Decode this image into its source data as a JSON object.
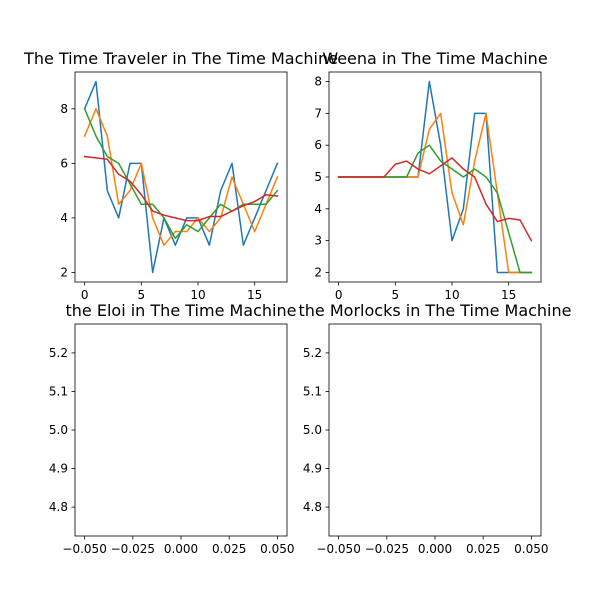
{
  "colors": {
    "series": [
      "#1f77b4",
      "#ff7f0e",
      "#2ca02c",
      "#d62728"
    ],
    "axes": "#000000",
    "background": "#ffffff"
  },
  "chart_data": [
    {
      "type": "line",
      "title": "The Time Traveler in The Time Machine",
      "xlabel": "",
      "ylabel": "",
      "x": [
        0,
        1,
        2,
        3,
        4,
        5,
        6,
        7,
        8,
        9,
        10,
        11,
        12,
        13,
        14,
        15,
        16,
        17
      ],
      "xlim": [
        -0.85,
        17.85
      ],
      "ylim": [
        1.65,
        9.35
      ],
      "xticks": [
        0,
        5,
        10,
        15
      ],
      "xtick_labels": [
        "0",
        "5",
        "10",
        "15"
      ],
      "yticks": [
        2,
        4,
        6,
        8
      ],
      "ytick_labels": [
        "2",
        "4",
        "6",
        "8"
      ],
      "grid": false,
      "series": [
        {
          "values": [
            8,
            9,
            5,
            4,
            6,
            6,
            2,
            4,
            3,
            4,
            4,
            3,
            5,
            6,
            3,
            4,
            5,
            6
          ]
        },
        {
          "values": [
            7,
            8,
            7,
            4.5,
            5,
            6,
            4,
            3,
            3.5,
            3.5,
            4,
            3.5,
            4,
            5.5,
            4.5,
            3.5,
            4.5,
            5.5
          ]
        },
        {
          "values": [
            8,
            7,
            6.25,
            6,
            5.25,
            4.5,
            4.5,
            4,
            3.25,
            3.75,
            3.5,
            4,
            4.5,
            4.25,
            4.5,
            4.5,
            4.5,
            5
          ]
        },
        {
          "values": [
            6.25,
            6.2,
            6.15,
            5.6,
            5.35,
            4.85,
            4.25,
            4.1,
            4.0,
            3.9,
            3.9,
            4.05,
            4.05,
            4.25,
            4.45,
            4.6,
            4.85,
            4.8
          ]
        }
      ]
    },
    {
      "type": "line",
      "title": "Weena in The Time Machine",
      "xlabel": "",
      "ylabel": "",
      "x": [
        0,
        1,
        2,
        3,
        4,
        5,
        6,
        7,
        8,
        9,
        10,
        11,
        12,
        13,
        14,
        15,
        16,
        17
      ],
      "xlim": [
        -0.85,
        17.85
      ],
      "ylim": [
        1.7,
        8.3
      ],
      "xticks": [
        0,
        5,
        10,
        15
      ],
      "xtick_labels": [
        "0",
        "5",
        "10",
        "15"
      ],
      "yticks": [
        2,
        3,
        4,
        5,
        6,
        7,
        8
      ],
      "ytick_labels": [
        "2",
        "3",
        "4",
        "5",
        "6",
        "7",
        "8"
      ],
      "grid": false,
      "series": [
        {
          "values": [
            5,
            5,
            5,
            5,
            5,
            5,
            5,
            5,
            8,
            6,
            3,
            4,
            7,
            7,
            2,
            2,
            2,
            2
          ]
        },
        {
          "values": [
            5,
            5,
            5,
            5,
            5,
            5,
            5,
            5,
            6.5,
            7,
            4.5,
            3.5,
            5.5,
            7,
            4.5,
            2,
            2,
            2
          ]
        },
        {
          "values": [
            5,
            5,
            5,
            5,
            5,
            5,
            5,
            5.75,
            6,
            5.5,
            5.25,
            5,
            5.25,
            5,
            4.5,
            3.25,
            2,
            2
          ]
        },
        {
          "values": [
            5,
            5,
            5,
            5,
            5,
            5.4,
            5.5,
            5.25,
            5.1,
            5.35,
            5.6,
            5.25,
            5.0,
            4.15,
            3.6,
            3.7,
            3.65,
            3.0
          ]
        }
      ]
    },
    {
      "type": "line",
      "title": "the Eloi in The Time Machine",
      "xlabel": "",
      "ylabel": "",
      "xlim": [
        -0.055,
        0.055
      ],
      "ylim": [
        4.725,
        5.275
      ],
      "xticks": [
        -0.05,
        -0.025,
        0,
        0.025,
        0.05
      ],
      "xtick_labels": [
        "−0.050",
        "−0.025",
        "0.000",
        "0.025",
        "0.050"
      ],
      "yticks": [
        4.8,
        4.9,
        5.0,
        5.1,
        5.2
      ],
      "ytick_labels": [
        "4.8",
        "4.9",
        "5.0",
        "5.1",
        "5.2"
      ],
      "grid": false,
      "series": []
    },
    {
      "type": "line",
      "title": "the Morlocks in The Time Machine",
      "xlabel": "",
      "ylabel": "",
      "xlim": [
        -0.055,
        0.055
      ],
      "ylim": [
        4.725,
        5.275
      ],
      "xticks": [
        -0.05,
        -0.025,
        0,
        0.025,
        0.05
      ],
      "xtick_labels": [
        "−0.050",
        "−0.025",
        "0.000",
        "0.025",
        "0.050"
      ],
      "yticks": [
        4.8,
        4.9,
        5.0,
        5.1,
        5.2
      ],
      "ytick_labels": [
        "4.8",
        "4.9",
        "5.0",
        "5.1",
        "5.2"
      ],
      "grid": false,
      "series": []
    }
  ]
}
